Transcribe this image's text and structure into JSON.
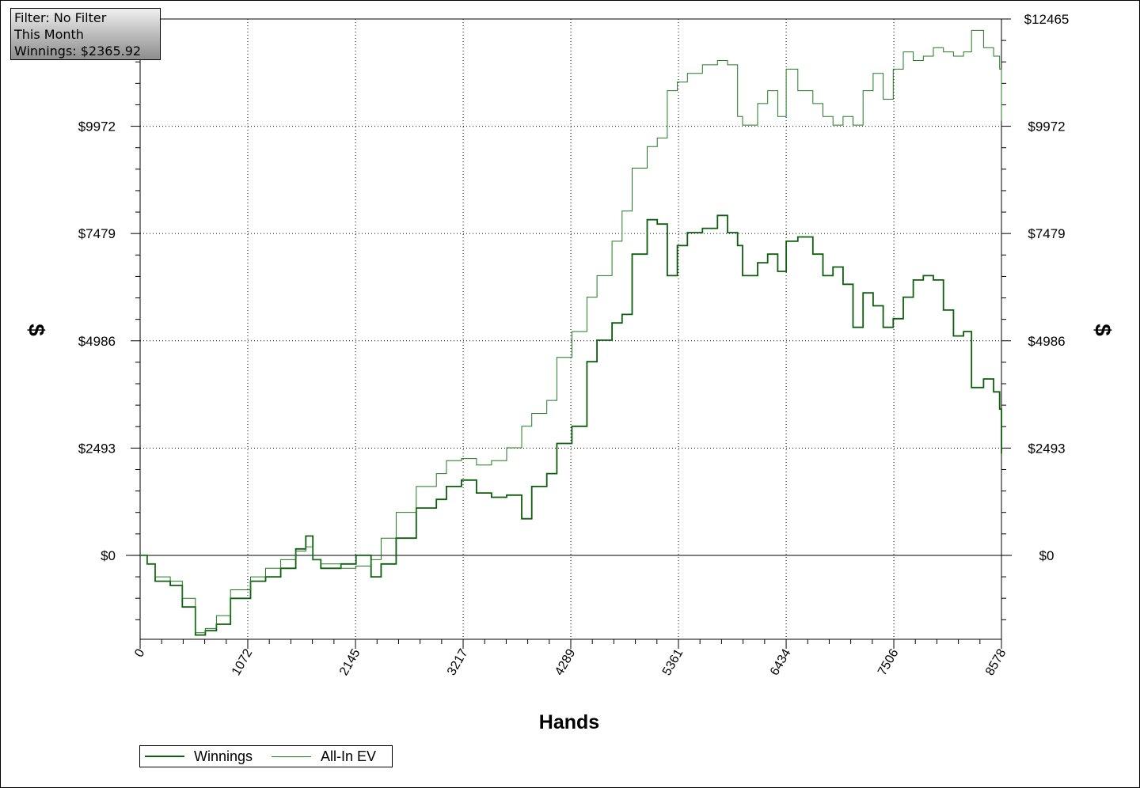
{
  "filter_box": {
    "line1": "Filter: No Filter",
    "line2": "This Month",
    "line3": "Winnings: $2365.92"
  },
  "colors": {
    "winnings": "#0b5e0b",
    "allin_ev": "#1f7a1f",
    "grid": "#000000"
  },
  "legend": {
    "winnings_label": "Winnings",
    "allin_label": "All-In EV"
  },
  "chart_data": {
    "type": "line",
    "xlabel": "Hands",
    "ylabel": "$",
    "xlim": [
      0,
      8578
    ],
    "ylim": [
      -1950,
      12465
    ],
    "x_ticks": [
      0,
      1072,
      2145,
      3217,
      4289,
      5361,
      6434,
      7506,
      8578
    ],
    "x_tick_labels": [
      "0",
      "1072",
      "2145",
      "3217",
      "4289",
      "5361",
      "6434",
      "7506",
      "8578"
    ],
    "y_ticks": [
      0,
      2493,
      4986,
      7479,
      9972,
      12465
    ],
    "y_tick_labels": [
      "$0",
      "$2493",
      "$4986",
      "$7479",
      "$9972",
      "$12465"
    ],
    "grid": true,
    "legend_position": "bottom-left",
    "series": [
      {
        "name": "Winnings",
        "points": [
          [
            0,
            0
          ],
          [
            70,
            -200
          ],
          [
            150,
            -600
          ],
          [
            300,
            -700
          ],
          [
            420,
            -1200
          ],
          [
            550,
            -1850
          ],
          [
            650,
            -1750
          ],
          [
            760,
            -1600
          ],
          [
            900,
            -1000
          ],
          [
            1100,
            -600
          ],
          [
            1250,
            -500
          ],
          [
            1400,
            -300
          ],
          [
            1550,
            150
          ],
          [
            1650,
            450
          ],
          [
            1720,
            -100
          ],
          [
            1800,
            -300
          ],
          [
            2000,
            -200
          ],
          [
            2150,
            0
          ],
          [
            2300,
            -500
          ],
          [
            2400,
            -200
          ],
          [
            2550,
            400
          ],
          [
            2750,
            1100
          ],
          [
            2950,
            1300
          ],
          [
            3050,
            1600
          ],
          [
            3200,
            1750
          ],
          [
            3350,
            1450
          ],
          [
            3500,
            1350
          ],
          [
            3650,
            1400
          ],
          [
            3800,
            850
          ],
          [
            3900,
            1600
          ],
          [
            4050,
            1900
          ],
          [
            4150,
            2600
          ],
          [
            4300,
            3000
          ],
          [
            4450,
            4500
          ],
          [
            4550,
            5000
          ],
          [
            4700,
            5400
          ],
          [
            4800,
            5600
          ],
          [
            4900,
            7000
          ],
          [
            5050,
            7800
          ],
          [
            5150,
            7700
          ],
          [
            5250,
            6500
          ],
          [
            5350,
            7200
          ],
          [
            5450,
            7500
          ],
          [
            5600,
            7600
          ],
          [
            5750,
            7900
          ],
          [
            5850,
            7500
          ],
          [
            5950,
            7200
          ],
          [
            6000,
            6500
          ],
          [
            6150,
            6800
          ],
          [
            6250,
            7000
          ],
          [
            6350,
            6600
          ],
          [
            6434,
            7300
          ],
          [
            6550,
            7400
          ],
          [
            6700,
            7000
          ],
          [
            6800,
            6500
          ],
          [
            6900,
            6700
          ],
          [
            7000,
            6300
          ],
          [
            7100,
            5300
          ],
          [
            7200,
            6100
          ],
          [
            7300,
            5800
          ],
          [
            7400,
            5300
          ],
          [
            7500,
            5500
          ],
          [
            7600,
            6000
          ],
          [
            7700,
            6400
          ],
          [
            7800,
            6500
          ],
          [
            7900,
            6400
          ],
          [
            8000,
            5700
          ],
          [
            8100,
            5100
          ],
          [
            8200,
            5200
          ],
          [
            8280,
            3900
          ],
          [
            8400,
            4100
          ],
          [
            8500,
            3800
          ],
          [
            8560,
            3400
          ],
          [
            8578,
            2366
          ]
        ]
      },
      {
        "name": "All-In EV",
        "points": [
          [
            0,
            0
          ],
          [
            70,
            -200
          ],
          [
            150,
            -500
          ],
          [
            300,
            -600
          ],
          [
            420,
            -1000
          ],
          [
            550,
            -1800
          ],
          [
            650,
            -1700
          ],
          [
            760,
            -1400
          ],
          [
            900,
            -800
          ],
          [
            1100,
            -500
          ],
          [
            1250,
            -300
          ],
          [
            1400,
            -100
          ],
          [
            1550,
            100
          ],
          [
            1650,
            200
          ],
          [
            1720,
            -100
          ],
          [
            1800,
            -200
          ],
          [
            2000,
            -300
          ],
          [
            2150,
            -250
          ],
          [
            2300,
            -100
          ],
          [
            2400,
            400
          ],
          [
            2550,
            1000
          ],
          [
            2750,
            1600
          ],
          [
            2950,
            1900
          ],
          [
            3050,
            2200
          ],
          [
            3200,
            2250
          ],
          [
            3350,
            2100
          ],
          [
            3500,
            2200
          ],
          [
            3650,
            2500
          ],
          [
            3800,
            3000
          ],
          [
            3900,
            3300
          ],
          [
            4050,
            3600
          ],
          [
            4150,
            4600
          ],
          [
            4300,
            5200
          ],
          [
            4450,
            6000
          ],
          [
            4550,
            6500
          ],
          [
            4700,
            7300
          ],
          [
            4800,
            8000
          ],
          [
            4900,
            9000
          ],
          [
            5050,
            9500
          ],
          [
            5150,
            9700
          ],
          [
            5250,
            10800
          ],
          [
            5350,
            11000
          ],
          [
            5450,
            11200
          ],
          [
            5600,
            11400
          ],
          [
            5750,
            11500
          ],
          [
            5850,
            11400
          ],
          [
            5950,
            10200
          ],
          [
            6000,
            10000
          ],
          [
            6150,
            10500
          ],
          [
            6250,
            10800
          ],
          [
            6350,
            10200
          ],
          [
            6434,
            11300
          ],
          [
            6550,
            10800
          ],
          [
            6700,
            10500
          ],
          [
            6800,
            10200
          ],
          [
            6900,
            10000
          ],
          [
            7000,
            10200
          ],
          [
            7100,
            10000
          ],
          [
            7200,
            10800
          ],
          [
            7300,
            11200
          ],
          [
            7400,
            10600
          ],
          [
            7500,
            11300
          ],
          [
            7600,
            11700
          ],
          [
            7700,
            11500
          ],
          [
            7800,
            11600
          ],
          [
            7900,
            11800
          ],
          [
            8000,
            11700
          ],
          [
            8100,
            11600
          ],
          [
            8200,
            11700
          ],
          [
            8280,
            12200
          ],
          [
            8400,
            11800
          ],
          [
            8500,
            11600
          ],
          [
            8560,
            11300
          ],
          [
            8578,
            10100
          ]
        ]
      }
    ]
  }
}
